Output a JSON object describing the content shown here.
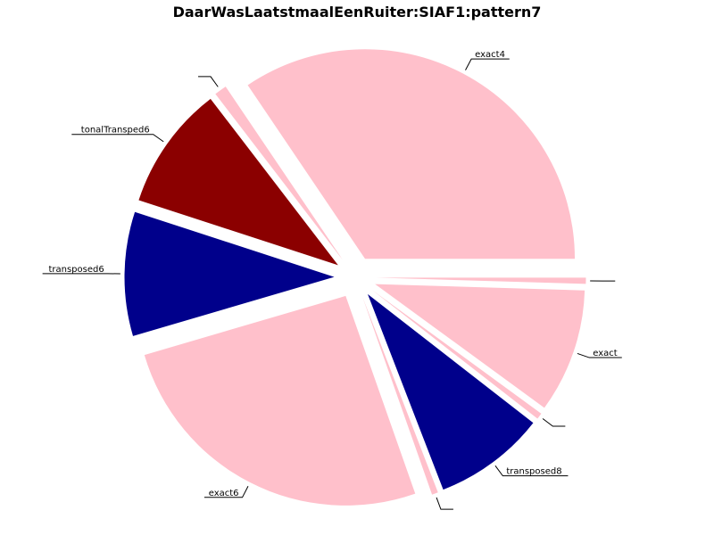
{
  "chart_data": {
    "type": "pie",
    "title": "DaarWasLaatstmaalEenRuiter:SIAF1:pattern7",
    "start_angle_deg": 0,
    "direction": "counterclockwise",
    "slices": [
      {
        "label": "exact4",
        "value": 36,
        "color": "#ffc0cb"
      },
      {
        "label": "",
        "value": 1,
        "color": "#ffc0cb"
      },
      {
        "label": "tonalTransped6",
        "value": 10,
        "color": "#8b0000"
      },
      {
        "label": "transposed6",
        "value": 10,
        "color": "#00008b"
      },
      {
        "label": "exact6",
        "value": 27,
        "color": "#ffc0cb"
      },
      {
        "label": "",
        "value": 0.5,
        "color": "#ffc0cb"
      },
      {
        "label": "transposed8",
        "value": 9,
        "color": "#00008b"
      },
      {
        "label": "",
        "value": 0.5,
        "color": "#ffc0cb"
      },
      {
        "label": "exact",
        "value": 10,
        "color": "#ffc0cb"
      },
      {
        "label": "",
        "value": 0.5,
        "color": "#ffc0cb"
      }
    ]
  }
}
